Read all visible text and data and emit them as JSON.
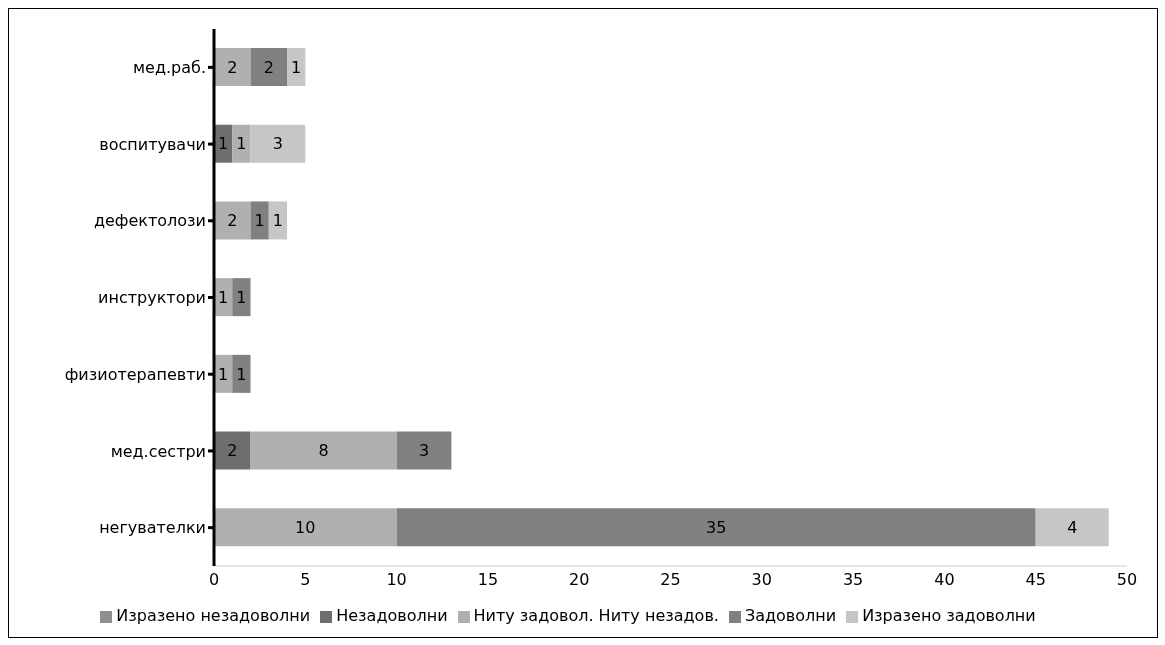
{
  "chart_data": {
    "type": "bar",
    "orientation": "horizontal",
    "stacked": true,
    "data_labels": true,
    "legend": "bottom",
    "grid": false,
    "categories": [
      "мед.раб.",
      "воспитувачи",
      "дефектолози",
      "инструктори",
      "физиотерапевти",
      "мед.сестри",
      "негувателки"
    ],
    "xlim": [
      0,
      50
    ],
    "xticks": [
      0,
      5,
      10,
      15,
      20,
      25,
      30,
      35,
      40,
      45,
      50
    ],
    "series": [
      {
        "name": "Изразено незадоволни",
        "color": "#8f8f8f",
        "values": [
          null,
          null,
          null,
          null,
          null,
          null,
          null
        ]
      },
      {
        "name": "Незадоволни",
        "color": "#6e6e6e",
        "values": [
          null,
          1,
          null,
          null,
          null,
          2,
          null
        ]
      },
      {
        "name": "Ниту задовол. Ниту незадов.",
        "color": "#b0b0b0",
        "values": [
          2,
          1,
          2,
          1,
          1,
          8,
          10
        ]
      },
      {
        "name": "Задоволни",
        "color": "#808080",
        "values": [
          2,
          null,
          1,
          1,
          1,
          3,
          35
        ]
      },
      {
        "name": "Изразено задоволни",
        "color": "#c6c6c6",
        "values": [
          1,
          3,
          1,
          null,
          null,
          null,
          4
        ]
      }
    ]
  }
}
